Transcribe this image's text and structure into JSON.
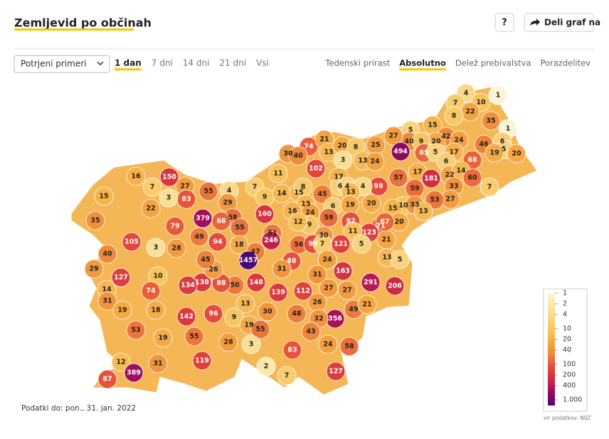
{
  "header": {
    "title": "Zemljevid po občinah",
    "help_button": "?",
    "share_button": "Deli graf na"
  },
  "controls": {
    "select": "Potrjeni primeri",
    "periods": [
      "1 dan",
      "7 dni",
      "14 dni",
      "21 dni",
      "Vsi"
    ],
    "active_period": 0,
    "views": [
      "Tedenski prirast",
      "Absolutno",
      "Delež prebivalstva",
      "Porazdelitev"
    ],
    "active_view": 1
  },
  "map": {
    "values": [
      4,
      7,
      10,
      1,
      22,
      8,
      35,
      1,
      6,
      5,
      15,
      42,
      20,
      24,
      40,
      9,
      27,
      494,
      65,
      5,
      17,
      68,
      46,
      5,
      19,
      20,
      6,
      17,
      181,
      22,
      14,
      60,
      7,
      33,
      57,
      59,
      27,
      53,
      10,
      33,
      13,
      15,
      20,
      71,
      123,
      21,
      13,
      5,
      67,
      99,
      20,
      74,
      30,
      40,
      21,
      13,
      20,
      8,
      25,
      3,
      13,
      24,
      102,
      17,
      11,
      7,
      9,
      14,
      15,
      8,
      45,
      6,
      4,
      4,
      13,
      6,
      19,
      92,
      59,
      30,
      11,
      15,
      24,
      16,
      9,
      12,
      160,
      4,
      29,
      55,
      58,
      68,
      379,
      55,
      51,
      246,
      47,
      18,
      94,
      49,
      56,
      99,
      7,
      121,
      5,
      88,
      31,
      24,
      163,
      31,
      27,
      27,
      291,
      206,
      148,
      139,
      112,
      50,
      88,
      138,
      134,
      26,
      45,
      28,
      3,
      10,
      74,
      79,
      150,
      27,
      83,
      7,
      3,
      16,
      22,
      15,
      35,
      105,
      40,
      29,
      127,
      14,
      31,
      19,
      18,
      142,
      96,
      13,
      9,
      30,
      48,
      26,
      356,
      49,
      21,
      32,
      43,
      24,
      58,
      19,
      55,
      3,
      26,
      55,
      19,
      53,
      31,
      119,
      83,
      2,
      7,
      127,
      12,
      389,
      87,
      1457
    ]
  },
  "legend": {
    "scale": "log",
    "lim": [
      1,
      1000
    ],
    "ticks": [
      1,
      2,
      4,
      10,
      20,
      40,
      100,
      200,
      400,
      {
        "value": 1000,
        "label": "1.000"
      }
    ],
    "colors": [
      "#fcf4d4",
      "#fbe8ac",
      "#fad88a",
      "#f8c45c",
      "#f5a843",
      "#f08a3a",
      "#e4483a",
      "#cf2a40",
      "#9e0c5e",
      "#4a0872"
    ]
  },
  "footer": {
    "date": "Podatki do: pon., 31. jan. 2022",
    "source": "vir podatkov: NIJZ"
  }
}
